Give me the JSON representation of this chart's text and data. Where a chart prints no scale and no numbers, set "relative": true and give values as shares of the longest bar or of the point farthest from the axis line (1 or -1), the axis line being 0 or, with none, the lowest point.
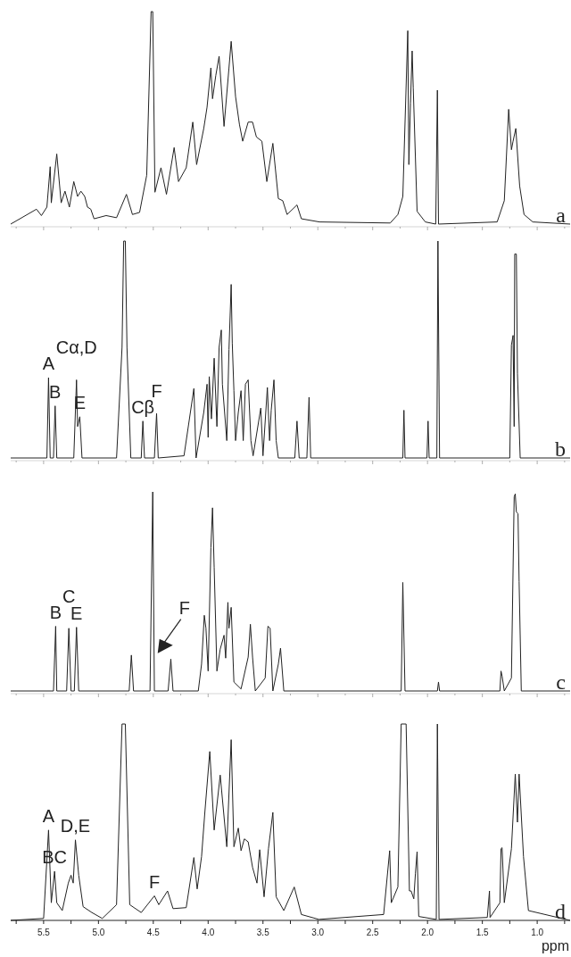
{
  "chart_data": [
    {
      "type": "line",
      "title": "a",
      "relative": true,
      "tick_labels": false,
      "xlim": [
        5.8,
        0.7
      ],
      "xticks": [
        {
          "value": 5.75,
          "label": null
        },
        5.5,
        {
          "value": 5.25,
          "label": null
        },
        5,
        {
          "value": 4.75,
          "label": null
        },
        4.5,
        {
          "value": 4.25,
          "label": null
        },
        4,
        {
          "value": 3.75,
          "label": null
        },
        3.5,
        {
          "value": 3.25,
          "label": null
        },
        3,
        {
          "value": 2.75,
          "label": null
        },
        2.5,
        {
          "value": 2.25,
          "label": null
        },
        2,
        {
          "value": 1.75,
          "label": null
        },
        1.5,
        {
          "value": 1.25,
          "label": null
        },
        1,
        {
          "value": 0.75,
          "label": null
        }
      ],
      "series": [
        {
          "color": "#222222",
          "x": [
            5.8,
            5.565,
            5.52,
            5.47,
            5.44,
            5.43,
            5.38,
            5.34,
            5.305,
            5.265,
            5.225,
            5.19,
            5.16,
            5.125,
            5.1,
            5.07,
            5.04,
            4.93,
            4.835,
            4.745,
            4.69,
            4.625,
            4.56,
            4.52,
            4.505,
            4.485,
            4.43,
            4.38,
            4.31,
            4.27,
            4.2,
            4.14,
            4.105,
            4.04,
            4.01,
            3.975,
            3.96,
            3.93,
            3.9,
            3.855,
            3.81,
            3.79,
            3.75,
            3.715,
            3.685,
            3.635,
            3.595,
            3.56,
            3.51,
            3.465,
            3.41,
            3.36,
            3.32,
            3.28,
            3.19,
            3.15,
            2.985,
            2.34,
            2.27,
            2.225,
            2.18,
            2.17,
            2.155,
            2.14,
            2.13,
            2.095,
            2.02,
            1.925,
            1.91,
            1.9,
            1.365,
            1.3,
            1.26,
            1.235,
            1.22,
            1.195,
            1.16,
            1.12,
            1.04,
            0.7
          ],
          "values": [
            0,
            0.07,
            0.04,
            0.08,
            0.27,
            0.1,
            0.33,
            0.1,
            0.155,
            0.08,
            0.2,
            0.13,
            0.155,
            0.13,
            0.08,
            0.07,
            0.025,
            0.04,
            0.03,
            0.14,
            0.045,
            0.055,
            0.23,
            1,
            1,
            0.15,
            0.265,
            0.14,
            0.36,
            0.2,
            0.265,
            0.48,
            0.28,
            0.45,
            0.55,
            0.735,
            0.59,
            0.7,
            0.79,
            0.46,
            0.735,
            0.86,
            0.6,
            0.47,
            0.39,
            0.48,
            0.48,
            0.41,
            0.39,
            0.2,
            0.38,
            0.12,
            0.11,
            0.045,
            0.09,
            0.025,
            0.01,
            0.005,
            0.045,
            0.13,
            0.91,
            0.28,
            0.57,
            0.815,
            0.64,
            0.06,
            0.01,
            0,
            0.63,
            0,
            0.01,
            0.11,
            0.54,
            0.35,
            0.39,
            0.45,
            0.18,
            0.045,
            0.01,
            0
          ]
        }
      ]
    },
    {
      "type": "line",
      "title": "b",
      "relative": true,
      "tick_labels": false,
      "xlim": [
        5.8,
        0.7
      ],
      "xticks": [
        {
          "value": 5.75,
          "label": null
        },
        5.5,
        {
          "value": 5.25,
          "label": null
        },
        5,
        {
          "value": 4.75,
          "label": null
        },
        4.5,
        {
          "value": 4.25,
          "label": null
        },
        4,
        {
          "value": 3.75,
          "label": null
        },
        3.5,
        {
          "value": 3.25,
          "label": null
        },
        3,
        {
          "value": 2.75,
          "label": null
        },
        2.5,
        {
          "value": 2.25,
          "label": null
        },
        2,
        {
          "value": 1.75,
          "label": null
        },
        1.5,
        {
          "value": 1.25,
          "label": null
        },
        1,
        {
          "value": 0.75,
          "label": null
        }
      ],
      "annotations": [
        {
          "text": "A",
          "x": 5.455,
          "y": 0.37
        },
        {
          "text": "B",
          "x": 5.395,
          "y": 0.24
        },
        {
          "text": "Cα,D",
          "x": 5.2,
          "y": 0.36
        },
        {
          "text": "E",
          "x": 5.17,
          "y": 0.19
        },
        {
          "text": "Cβ",
          "x": 4.595,
          "y": 0.17
        },
        {
          "text": "F",
          "x": 4.47,
          "y": 0.205
        }
      ],
      "series": [
        {
          "color": "#222222",
          "x": [
            5.8,
            5.47,
            5.455,
            5.44,
            5.41,
            5.395,
            5.38,
            5.225,
            5.2,
            5.19,
            5.17,
            5.15,
            4.835,
            4.785,
            4.77,
            4.755,
            4.74,
            4.705,
            4.61,
            4.595,
            4.58,
            4.49,
            4.47,
            4.455,
            4.22,
            4.13,
            4.11,
            4.04,
            4.01,
            4.0,
            3.99,
            3.97,
            3.945,
            3.92,
            3.9,
            3.88,
            3.87,
            3.83,
            3.81,
            3.79,
            3.78,
            3.765,
            3.75,
            3.725,
            3.7,
            3.68,
            3.66,
            3.635,
            3.61,
            3.59,
            3.52,
            3.5,
            3.46,
            3.44,
            3.425,
            3.4,
            3.38,
            3.36,
            3.21,
            3.19,
            3.17,
            3.1,
            3.08,
            3.065,
            2.225,
            2.215,
            2.205,
            2.005,
            1.995,
            1.985,
            1.915,
            1.905,
            1.89,
            1.25,
            1.235,
            1.22,
            1.21,
            1.205,
            1.19,
            1.18,
            1.155,
            0.7
          ],
          "values": [
            0,
            0,
            0.37,
            0,
            0,
            0.24,
            0,
            0,
            0.36,
            0.145,
            0.19,
            0,
            0,
            0.51,
            1,
            1,
            0.51,
            0,
            0,
            0.17,
            0,
            0,
            0.205,
            0,
            0.01,
            0.32,
            0,
            0.21,
            0.34,
            0.095,
            0.375,
            0.18,
            0.46,
            0.145,
            0.51,
            0.59,
            0.34,
            0.08,
            0.5,
            0.8,
            0.53,
            0.31,
            0.08,
            0.21,
            0.31,
            0.08,
            0.34,
            0.36,
            0.08,
            0.01,
            0.23,
            0.01,
            0.325,
            0.08,
            0.22,
            0.36,
            0.08,
            0,
            0,
            0.17,
            0,
            0,
            0.28,
            0,
            0,
            0.22,
            0,
            0,
            0.17,
            0,
            0,
            1,
            0,
            0,
            0.52,
            0.565,
            0.145,
            0.94,
            0.94,
            0.39,
            0,
            0
          ]
        }
      ]
    },
    {
      "type": "line",
      "title": "c",
      "relative": true,
      "tick_labels": false,
      "xlim": [
        5.8,
        0.7
      ],
      "xticks": [
        {
          "value": 5.75,
          "label": null
        },
        5.5,
        {
          "value": 5.25,
          "label": null
        },
        5,
        {
          "value": 4.75,
          "label": null
        },
        4.5,
        {
          "value": 4.25,
          "label": null
        },
        4,
        {
          "value": 3.75,
          "label": null
        },
        3.5,
        {
          "value": 3.25,
          "label": null
        },
        3,
        {
          "value": 2.75,
          "label": null
        },
        2.5,
        {
          "value": 2.25,
          "label": null
        },
        2,
        {
          "value": 1.75,
          "label": null
        },
        1.5,
        {
          "value": 1.25,
          "label": null
        },
        1,
        {
          "value": 0.75,
          "label": null
        }
      ],
      "annotations": [
        {
          "text": "B",
          "x": 5.39,
          "y": 0.325
        },
        {
          "text": "C",
          "x": 5.27,
          "y": 0.315
        },
        {
          "text": "E",
          "x": 5.2,
          "y": 0.32
        },
        {
          "text": "F",
          "x": 4.46,
          "y": 0.19
        }
      ],
      "series": [
        {
          "color": "#222222",
          "x": [
            5.8,
            5.41,
            5.39,
            5.38,
            5.29,
            5.27,
            5.25,
            5.22,
            5.2,
            5.18,
            4.72,
            4.7,
            4.68,
            4.53,
            4.505,
            4.49,
            4.365,
            4.34,
            4.32,
            4.09,
            4.06,
            4.035,
            4.02,
            4.0,
            3.975,
            3.96,
            3.945,
            3.92,
            3.89,
            3.855,
            3.84,
            3.82,
            3.81,
            3.79,
            3.765,
            3.7,
            3.635,
            3.615,
            3.595,
            3.57,
            3.48,
            3.455,
            3.435,
            3.41,
            3.36,
            3.34,
            3.31,
            2.24,
            2.225,
            2.205,
            1.91,
            1.9,
            1.89,
            1.34,
            1.33,
            1.32,
            1.3,
            1.235,
            1.21,
            1.2,
            1.19,
            1.175,
            1.165,
            1.145,
            0.7
          ],
          "values": [
            0,
            0,
            0.325,
            0,
            0,
            0.315,
            0,
            0,
            0.32,
            0,
            0,
            0.18,
            0,
            0,
            1,
            0,
            0,
            0.16,
            0,
            0,
            0.135,
            0.38,
            0.315,
            0.1,
            0.72,
            0.92,
            0.62,
            0.1,
            0.21,
            0.28,
            0.165,
            0.445,
            0.315,
            0.42,
            0.045,
            0.01,
            0.17,
            0.335,
            0.17,
            0,
            0.065,
            0.325,
            0.315,
            0,
            0.135,
            0.215,
            0,
            0,
            0.545,
            0,
            0,
            0.045,
            0,
            0,
            0.1,
            0.075,
            0,
            0.065,
            0.975,
            0.99,
            0.9,
            0.89,
            0.55,
            0,
            0
          ]
        }
      ]
    },
    {
      "type": "line",
      "title": "d",
      "relative": true,
      "xlim": [
        5.8,
        0.7
      ],
      "tick_labels": "x",
      "xlabel": "ppm",
      "xticks": [
        {
          "value": 5.75,
          "label": null
        },
        5.5,
        {
          "value": 5.25,
          "label": null
        },
        {
          "value": 5.0,
          "label": "5.0"
        },
        {
          "value": 4.75,
          "label": null
        },
        4.5,
        {
          "value": 4.25,
          "label": null
        },
        {
          "value": 4.0,
          "label": "4.0"
        },
        {
          "value": 3.75,
          "label": null
        },
        3.5,
        {
          "value": 3.25,
          "label": null
        },
        {
          "value": 3.0,
          "label": "3.0"
        },
        {
          "value": 2.75,
          "label": null
        },
        2.5,
        {
          "value": 2.25,
          "label": null
        },
        {
          "value": 2.0,
          "label": "2.0"
        },
        {
          "value": 1.75,
          "label": null
        },
        1.5,
        {
          "value": 1.25,
          "label": null
        },
        {
          "value": 1.0,
          "label": "1.0"
        },
        {
          "value": 0.75,
          "label": null
        }
      ],
      "annotations": [
        {
          "text": "A",
          "x": 5.455,
          "y": 0.46
        },
        {
          "text": "BC",
          "x": 5.4,
          "y": 0.25
        },
        {
          "text": "D,E",
          "x": 5.21,
          "y": 0.41
        },
        {
          "text": "F",
          "x": 4.49,
          "y": 0.125
        }
      ],
      "series": [
        {
          "color": "#222222",
          "x": [
            5.8,
            5.5,
            5.455,
            5.43,
            5.4,
            5.38,
            5.33,
            5.275,
            5.25,
            5.23,
            5.21,
            5.18,
            5.14,
            5.06,
            4.965,
            4.835,
            4.785,
            4.755,
            4.715,
            4.61,
            4.49,
            4.45,
            4.37,
            4.32,
            4.2,
            4.13,
            4.1,
            4.06,
            4.03,
            3.985,
            3.945,
            3.89,
            3.83,
            3.79,
            3.765,
            3.725,
            3.7,
            3.67,
            3.635,
            3.595,
            3.555,
            3.53,
            3.49,
            3.45,
            3.41,
            3.38,
            3.31,
            3.215,
            3.15,
            2.99,
            2.4,
            2.345,
            2.33,
            2.27,
            2.24,
            2.195,
            2.165,
            2.15,
            2.125,
            2.11,
            2.095,
            2.08,
            1.92,
            1.91,
            1.895,
            1.455,
            1.435,
            1.43,
            1.34,
            1.33,
            1.32,
            1.3,
            1.235,
            1.2,
            1.18,
            1.165,
            1.125,
            1.08,
            0.7
          ],
          "values": [
            0,
            0.01,
            0.46,
            0.09,
            0.25,
            0.09,
            0.05,
            0.19,
            0.23,
            0.19,
            0.41,
            0.23,
            0.07,
            0.04,
            0.01,
            0.08,
            1,
            1,
            0.08,
            0.04,
            0.125,
            0.08,
            0.15,
            0.06,
            0.065,
            0.32,
            0.16,
            0.325,
            0.55,
            0.86,
            0.46,
            0.74,
            0.375,
            0.92,
            0.375,
            0.47,
            0.355,
            0.415,
            0.4,
            0.27,
            0.19,
            0.36,
            0.12,
            0.365,
            0.55,
            0.12,
            0.05,
            0.17,
            0.03,
            0.005,
            0.03,
            0.355,
            0.09,
            0.17,
            1,
            1,
            0.15,
            0.15,
            0.11,
            0.24,
            0.35,
            0.02,
            0.005,
            1,
            0.005,
            0.015,
            0.15,
            0.015,
            0.09,
            0.365,
            0.37,
            0.09,
            0.365,
            0.745,
            0.5,
            0.745,
            0.325,
            0.05,
            0
          ]
        }
      ]
    }
  ]
}
